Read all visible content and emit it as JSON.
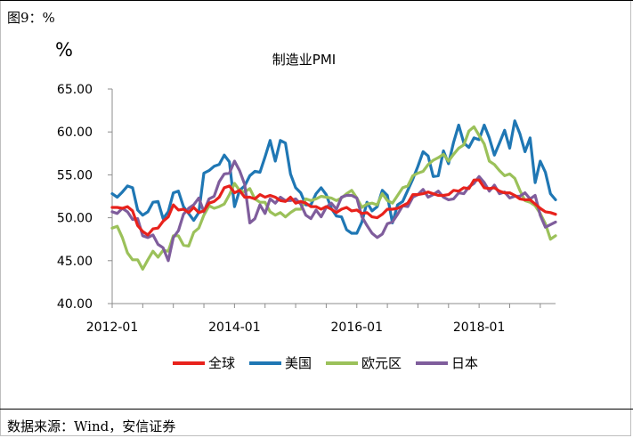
{
  "figure_label": "图9：%",
  "source": "数据来源：Wind，安信证券",
  "colors": {
    "全球": "#e8221c",
    "美国": "#1f77b4",
    "欧元区": "#9bc15a",
    "日本": "#7f5d9c"
  },
  "chart_data": {
    "type": "line",
    "title": "制造业PMI",
    "unit": "%",
    "xlabel": "",
    "ylabel": "",
    "ylim": [
      40,
      65
    ],
    "yticks": [
      "40.00",
      "45.00",
      "50.00",
      "55.00",
      "60.00",
      "65.00"
    ],
    "xticks": [
      "2012-01",
      "2014-01",
      "2016-01",
      "2018-01"
    ],
    "x_start": "2012-01",
    "x_end": "2019-04",
    "grid": false,
    "legend": "bottom",
    "series": [
      {
        "name": "全球",
        "color": "#e8221c",
        "values": [
          51.2,
          51.2,
          51.1,
          51.3,
          50.8,
          49.1,
          48.4,
          48.0,
          48.7,
          48.8,
          49.6,
          50.1,
          51.5,
          50.9,
          51.0,
          50.6,
          51.2,
          50.6,
          50.8,
          51.7,
          51.9,
          52.4,
          53.5,
          53.7,
          52.9,
          53.2,
          52.4,
          52.4,
          52.2,
          52.7,
          52.4,
          52.6,
          52.4,
          52.0,
          51.9,
          52.4,
          51.7,
          51.9,
          51.7,
          51.3,
          51.3,
          51.0,
          51.3,
          51.0,
          50.6,
          51.0,
          51.2,
          50.8,
          50.9,
          50.5,
          50.6,
          50.1,
          50.0,
          50.4,
          51.0,
          51.0,
          51.1,
          51.4,
          51.7,
          52.7,
          52.7,
          52.8,
          53.0,
          52.8,
          52.6,
          52.6,
          52.7,
          53.2,
          53.1,
          53.5,
          53.4,
          54.4,
          54.4,
          53.5,
          53.4,
          53.5,
          53.1,
          52.9,
          52.9,
          52.6,
          52.2,
          52.1,
          52.1,
          51.6,
          51.1,
          50.7,
          50.6,
          50.4
        ]
      },
      {
        "name": "美国",
        "color": "#1f77b4",
        "values": [
          52.8,
          52.4,
          53.0,
          53.7,
          53.5,
          50.9,
          50.3,
          50.7,
          51.8,
          51.9,
          49.9,
          50.7,
          52.9,
          53.1,
          51.3,
          50.5,
          49.7,
          50.6,
          55.2,
          55.5,
          56.0,
          56.2,
          57.3,
          56.5,
          51.3,
          53.2,
          53.7,
          54.9,
          55.4,
          55.3,
          57.1,
          59.0,
          56.6,
          59.0,
          58.7,
          55.1,
          53.5,
          52.9,
          51.5,
          51.5,
          52.8,
          53.5,
          52.7,
          51.1,
          50.2,
          50.1,
          48.6,
          48.2,
          48.2,
          49.5,
          51.8,
          50.8,
          51.3,
          53.2,
          52.6,
          49.4,
          51.5,
          51.9,
          53.2,
          54.5,
          56.0,
          57.7,
          57.2,
          54.8,
          54.9,
          57.8,
          56.3,
          58.8,
          60.8,
          58.7,
          58.2,
          59.3,
          59.1,
          60.8,
          59.3,
          57.3,
          58.7,
          60.2,
          58.1,
          61.3,
          59.8,
          57.7,
          59.3,
          54.1,
          56.6,
          55.3,
          52.8,
          52.1
        ]
      },
      {
        "name": "欧元区",
        "color": "#9bc15a",
        "values": [
          48.8,
          49.0,
          47.7,
          45.9,
          45.1,
          45.1,
          44.0,
          45.1,
          46.1,
          45.4,
          46.2,
          46.1,
          47.9,
          47.9,
          46.8,
          46.7,
          48.3,
          48.8,
          50.3,
          51.4,
          51.1,
          51.3,
          51.6,
          52.7,
          54.0,
          53.2,
          53.0,
          53.4,
          52.2,
          51.8,
          51.8,
          50.7,
          50.3,
          50.6,
          50.1,
          50.6,
          51.0,
          51.0,
          52.2,
          52.0,
          52.2,
          52.5,
          52.4,
          52.3,
          52.0,
          52.3,
          52.8,
          53.2,
          52.3,
          51.2,
          51.6,
          51.7,
          51.5,
          52.8,
          52.0,
          51.7,
          52.6,
          53.5,
          53.7,
          54.9,
          55.2,
          55.4,
          56.2,
          56.7,
          57.0,
          57.4,
          56.6,
          57.4,
          58.1,
          58.5,
          60.1,
          60.6,
          59.6,
          58.6,
          56.6,
          56.2,
          55.5,
          54.9,
          55.1,
          54.6,
          53.2,
          52.0,
          51.8,
          51.4,
          50.5,
          49.3,
          47.5,
          47.9
        ]
      },
      {
        "name": "日本",
        "color": "#7f5d9c",
        "values": [
          50.7,
          50.5,
          51.1,
          50.7,
          49.8,
          49.9,
          47.9,
          47.7,
          48.0,
          46.9,
          46.5,
          45.0,
          47.7,
          48.5,
          50.4,
          51.1,
          51.5,
          52.3,
          50.7,
          52.2,
          52.5,
          54.2,
          55.1,
          55.2,
          56.6,
          55.5,
          53.9,
          49.4,
          49.9,
          51.5,
          50.5,
          52.2,
          51.7,
          52.4,
          52.0,
          52.0,
          52.2,
          51.6,
          50.3,
          49.9,
          50.9,
          50.1,
          51.2,
          51.7,
          51.0,
          52.4,
          52.6,
          52.6,
          52.3,
          50.1,
          49.1,
          48.2,
          47.7,
          48.1,
          49.3,
          49.5,
          50.4,
          51.4,
          51.3,
          52.4,
          52.7,
          53.3,
          52.4,
          52.7,
          53.1,
          52.4,
          52.1,
          52.2,
          52.9,
          52.8,
          53.6,
          54.0,
          54.8,
          54.1,
          53.1,
          53.8,
          52.8,
          53.0,
          52.3,
          52.5,
          52.5,
          52.9,
          52.2,
          52.6,
          50.3,
          48.9,
          49.2,
          49.5
        ]
      }
    ]
  }
}
